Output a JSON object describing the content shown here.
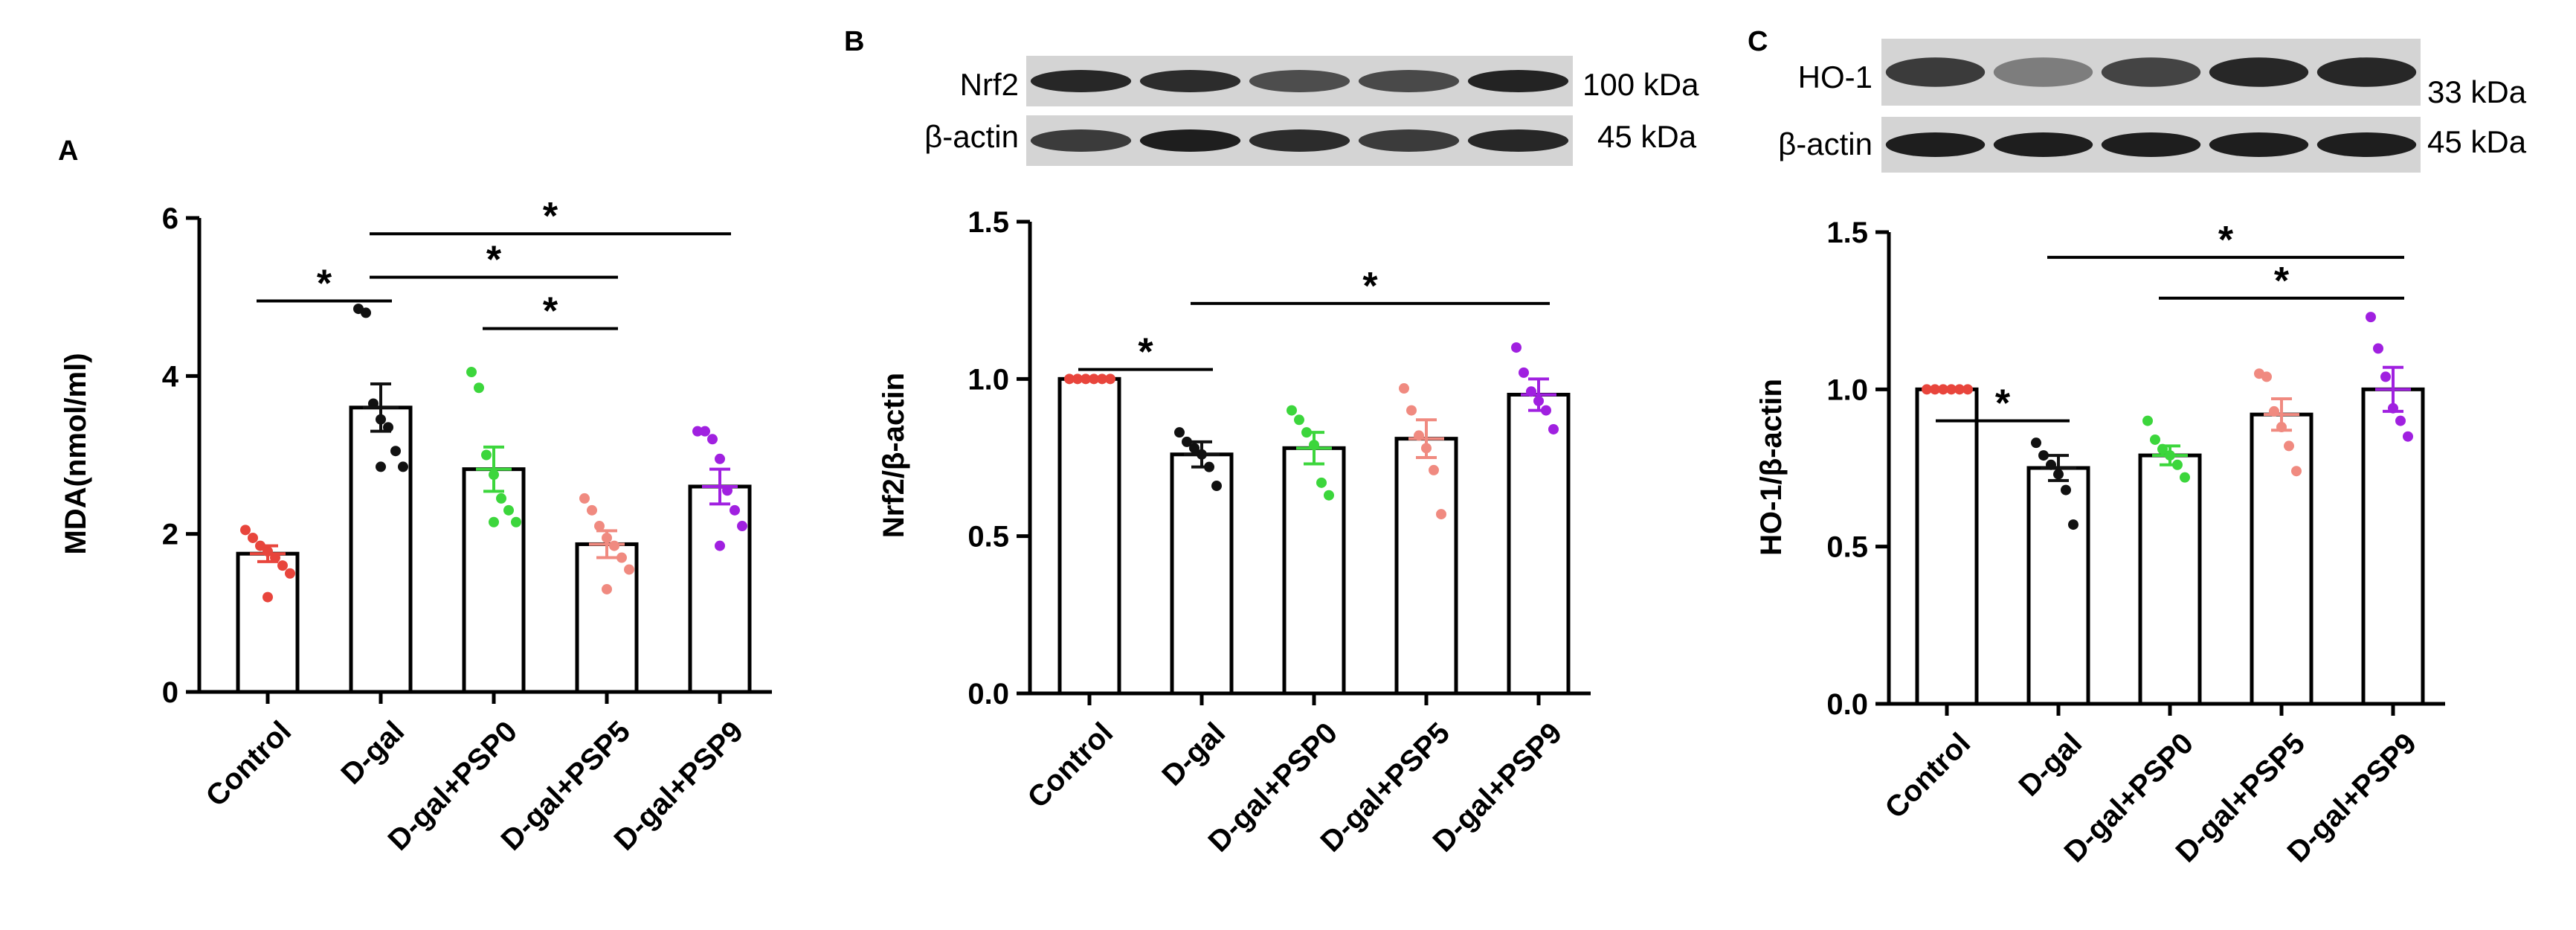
{
  "colors": {
    "Control": "#e8453c",
    "D-gal": "#111111",
    "D-gal+PSP0": "#3cd63c",
    "D-gal+PSP5": "#f08a80",
    "D-gal+PSP9": "#a020e0"
  },
  "chart_data": [
    {
      "panel": "A",
      "type": "bar",
      "title": "",
      "xlabel": "",
      "ylabel": "MDA(nmol/ml)",
      "ylim": [
        0,
        6
      ],
      "yticks": [
        0,
        2,
        4,
        6
      ],
      "grid": false,
      "categories": [
        "Control",
        "D-gal",
        "D-gal+PSP0",
        "D-gal+PSP5",
        "D-gal+PSP9"
      ],
      "values": [
        1.75,
        3.6,
        2.82,
        1.87,
        2.6
      ],
      "sem": [
        0.1,
        0.3,
        0.28,
        0.17,
        0.22
      ],
      "points": [
        [
          2.05,
          1.95,
          1.85,
          1.78,
          1.7,
          1.6,
          1.5,
          1.2
        ],
        [
          4.85,
          4.8,
          3.65,
          3.45,
          3.35,
          3.05,
          2.85,
          2.85
        ],
        [
          4.05,
          3.85,
          3.0,
          2.75,
          2.45,
          2.3,
          2.15,
          2.15
        ],
        [
          2.45,
          2.3,
          2.1,
          1.95,
          1.85,
          1.7,
          1.55,
          1.3
        ],
        [
          3.3,
          3.3,
          3.2,
          2.95,
          2.55,
          2.3,
          2.1,
          1.85
        ]
      ],
      "significance": [
        {
          "from": 0,
          "to": 1,
          "label": "*",
          "y": 4.95
        },
        {
          "from": 1,
          "to": 3,
          "label": "*",
          "y": 5.25
        },
        {
          "from": 1,
          "to": 4,
          "label": "*",
          "y": 5.8
        },
        {
          "from": 2,
          "to": 3,
          "label": "*",
          "y": 4.6
        }
      ]
    },
    {
      "panel": "B",
      "type": "bar",
      "title": "",
      "xlabel": "",
      "ylabel": "Nrf2/β-actin",
      "ylim": [
        0,
        1.5
      ],
      "yticks": [
        0.0,
        0.5,
        1.0,
        1.5
      ],
      "grid": false,
      "categories": [
        "Control",
        "D-gal",
        "D-gal+PSP0",
        "D-gal+PSP5",
        "D-gal+PSP9"
      ],
      "values": [
        1.0,
        0.76,
        0.78,
        0.81,
        0.95
      ],
      "sem": [
        0.0,
        0.04,
        0.05,
        0.06,
        0.05
      ],
      "points": [
        [
          1.0,
          1.0,
          1.0,
          1.0,
          1.0,
          1.0
        ],
        [
          0.83,
          0.8,
          0.78,
          0.76,
          0.72,
          0.66
        ],
        [
          0.9,
          0.87,
          0.83,
          0.79,
          0.67,
          0.63
        ],
        [
          0.97,
          0.9,
          0.82,
          0.78,
          0.71,
          0.57
        ],
        [
          1.1,
          1.02,
          0.96,
          0.93,
          0.9,
          0.84
        ]
      ],
      "significance": [
        {
          "from": 0,
          "to": 1,
          "label": "*",
          "y": 1.03
        },
        {
          "from": 1,
          "to": 4,
          "label": "*",
          "y": 1.24
        }
      ],
      "blot": {
        "rows": [
          {
            "protein": "Nrf2",
            "size": "100 kDa"
          },
          {
            "protein": "β-actin",
            "size": "45 kDa"
          }
        ]
      }
    },
    {
      "panel": "C",
      "type": "bar",
      "title": "",
      "xlabel": "",
      "ylabel": "HO-1/β-actin",
      "ylim": [
        0,
        1.5
      ],
      "yticks": [
        0.0,
        0.5,
        1.0,
        1.5
      ],
      "grid": false,
      "categories": [
        "Control",
        "D-gal",
        "D-gal+PSP0",
        "D-gal+PSP5",
        "D-gal+PSP9"
      ],
      "values": [
        1.0,
        0.75,
        0.79,
        0.92,
        1.0
      ],
      "sem": [
        0.0,
        0.04,
        0.03,
        0.05,
        0.07
      ],
      "points": [
        [
          1.0,
          1.0,
          1.0,
          1.0,
          1.0,
          1.0
        ],
        [
          0.83,
          0.79,
          0.76,
          0.73,
          0.68,
          0.57
        ],
        [
          0.9,
          0.84,
          0.81,
          0.79,
          0.76,
          0.72
        ],
        [
          1.05,
          1.04,
          0.93,
          0.88,
          0.82,
          0.74
        ],
        [
          1.23,
          1.13,
          1.04,
          0.94,
          0.9,
          0.85
        ]
      ],
      "significance": [
        {
          "from": 0,
          "to": 1,
          "label": "*",
          "y": 0.9
        },
        {
          "from": 2,
          "to": 4,
          "label": "*",
          "y": 1.29
        },
        {
          "from": 1,
          "to": 4,
          "label": "*",
          "y": 1.42
        }
      ],
      "blot": {
        "rows": [
          {
            "protein": "HO-1",
            "size": "33 kDa"
          },
          {
            "protein": "β-actin",
            "size": "45 kDa"
          }
        ]
      }
    }
  ]
}
